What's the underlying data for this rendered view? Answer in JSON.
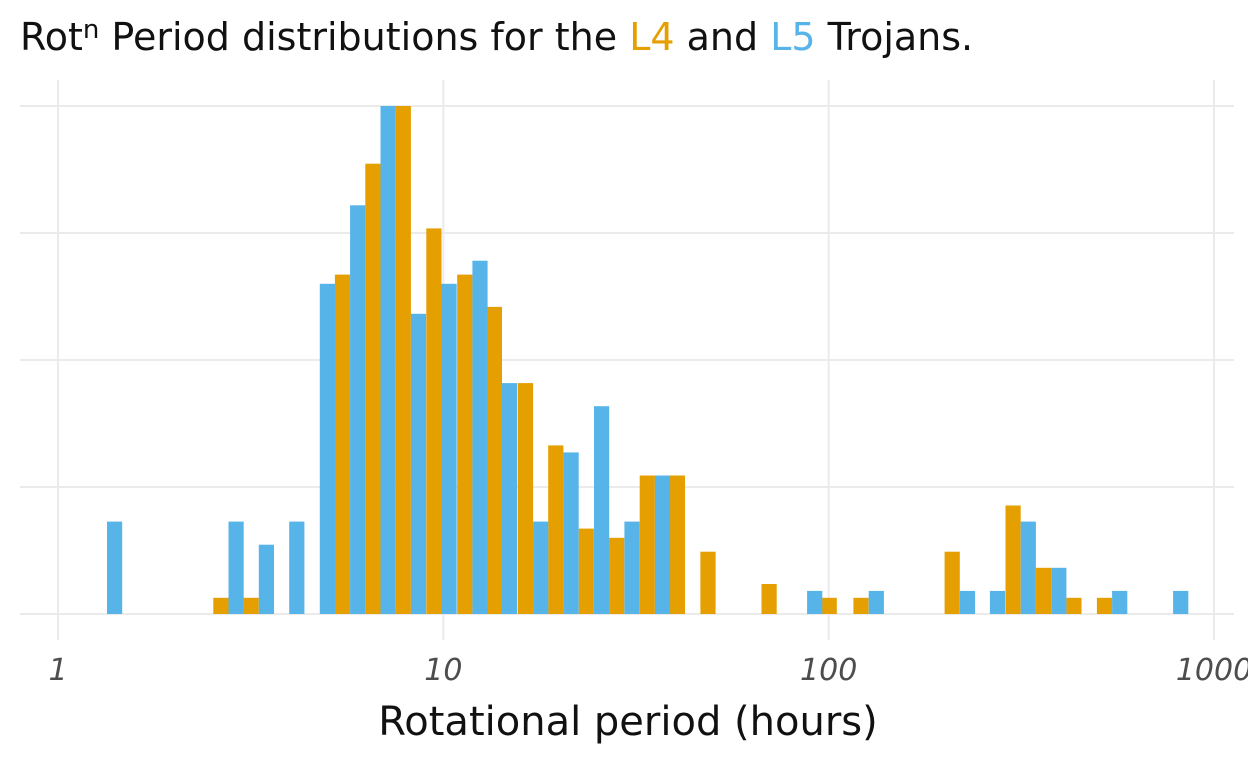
{
  "chart_data": {
    "type": "bar",
    "title_parts": [
      {
        "text": "Rot",
        "role": "plain"
      },
      {
        "text": "n",
        "role": "superscript"
      },
      {
        "text": " Period distributions for the ",
        "role": "plain"
      },
      {
        "text": "L4",
        "role": "l4"
      },
      {
        "text": " and ",
        "role": "plain"
      },
      {
        "text": "L5",
        "role": "l5"
      },
      {
        "text": " Trojans.",
        "role": "plain"
      }
    ],
    "xlabel": "Rotational period (hours)",
    "ylabel": "",
    "x_scale": "log10",
    "xlim": [
      1,
      1000
    ],
    "ylim": [
      0,
      22
    ],
    "x_ticks": [
      {
        "value": 1,
        "label": "1"
      },
      {
        "value": 10,
        "label": "10"
      },
      {
        "value": 100,
        "label": "100"
      },
      {
        "value": 1000,
        "label": "1000"
      }
    ],
    "y_gridlines": [
      0,
      5.5,
      11,
      16.5,
      22
    ],
    "grid": true,
    "legend": "none (series identified by title colours)",
    "colors": {
      "L4": "#E69F00",
      "L5": "#56B4E9",
      "grid": "#ebebeb",
      "text": "#111111",
      "tick": "#4d4d4d"
    },
    "bin_centers": [
      1.34,
      1.6,
      1.92,
      2.31,
      2.77,
      3.32,
      3.98,
      4.78,
      5.73,
      6.87,
      8.24,
      9.89,
      11.9,
      14.2,
      17.1,
      20.5,
      24.6,
      29.5,
      35.4,
      42.4,
      50.9,
      61.1,
      73.3,
      87.9,
      105,
      127,
      152,
      182,
      219,
      262,
      315,
      378,
      453,
      544,
      652,
      783
    ],
    "series": [
      {
        "name": "L4",
        "values": [
          0,
          0,
          0,
          0,
          0.7,
          0.7,
          0,
          0,
          14.7,
          19.5,
          22,
          16.7,
          14.7,
          13.3,
          10,
          7.3,
          3.7,
          3.3,
          6,
          6,
          2.7,
          0,
          1.3,
          0,
          0.7,
          0.7,
          0,
          0,
          2.7,
          0,
          4.7,
          2,
          0.7,
          0.7,
          0,
          0
        ]
      },
      {
        "name": "L5",
        "values": [
          4,
          0,
          0,
          0,
          4,
          3,
          4,
          14.3,
          17.7,
          22,
          13,
          14.3,
          15.3,
          10,
          4,
          7,
          9,
          4,
          6,
          0,
          0,
          0,
          0,
          1,
          0,
          1,
          0,
          0,
          1,
          1,
          4,
          2,
          0,
          1,
          0,
          1
        ]
      }
    ]
  }
}
